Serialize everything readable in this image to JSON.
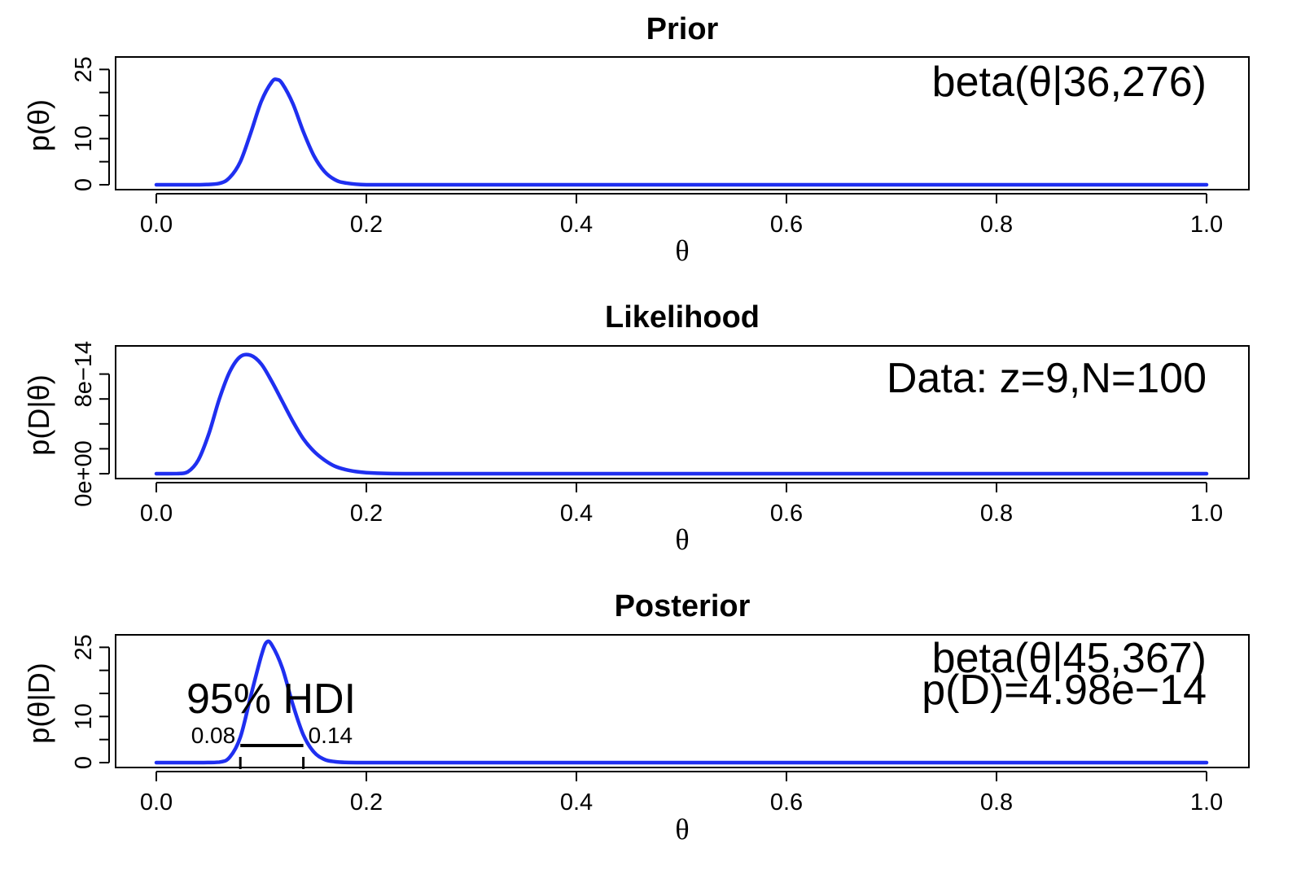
{
  "chart_data": [
    {
      "type": "line",
      "title": "Prior",
      "xlabel": "θ",
      "ylabel": "p(θ)",
      "xlim": [
        0,
        1
      ],
      "ylim": [
        0,
        27
      ],
      "x_ticks": [
        "0.0",
        "0.2",
        "0.4",
        "0.6",
        "0.8",
        "1.0"
      ],
      "x_tick_values": [
        0,
        0.2,
        0.4,
        0.6,
        0.8,
        1.0
      ],
      "y_ticks": [
        "0",
        "10",
        "25"
      ],
      "y_tick_values": [
        0,
        10,
        25
      ],
      "y_minor_ticks": [
        5,
        15,
        20
      ],
      "annotation": "beta(θ|36,276)",
      "series": [
        {
          "color": "#1f2ff0",
          "x": [
            0.0,
            0.02,
            0.04,
            0.06,
            0.07,
            0.08,
            0.09,
            0.1,
            0.11,
            0.115,
            0.12,
            0.13,
            0.14,
            0.15,
            0.16,
            0.17,
            0.18,
            0.2,
            0.25,
            0.5,
            0.75,
            1.0
          ],
          "y": [
            0,
            0,
            0,
            0.3,
            1.6,
            5.0,
            11.3,
            18.1,
            22.3,
            22.8,
            21.9,
            17.6,
            11.5,
            6.3,
            2.9,
            1.1,
            0.4,
            0.0,
            0,
            0,
            0,
            0
          ]
        }
      ]
    },
    {
      "type": "line",
      "title": "Likelihood",
      "xlabel": "θ",
      "ylabel": "p(D|θ)",
      "xlim": [
        0,
        1
      ],
      "ylim": [
        0,
        1e-13
      ],
      "x_ticks": [
        "0.0",
        "0.2",
        "0.4",
        "0.6",
        "0.8",
        "1.0"
      ],
      "x_tick_values": [
        0,
        0.2,
        0.4,
        0.6,
        0.8,
        1.0
      ],
      "y_ticks": [
        "0e+00",
        "8e−14"
      ],
      "y_tick_values": [
        0,
        8e-14
      ],
      "y_minor_ticks": [
        2e-14,
        4e-14,
        6e-14
      ],
      "annotation": "Data: z=9,N=100",
      "series": [
        {
          "color": "#1f2ff0",
          "x": [
            0.0,
            0.02,
            0.03,
            0.04,
            0.05,
            0.06,
            0.07,
            0.08,
            0.09,
            0.1,
            0.11,
            0.12,
            0.13,
            0.14,
            0.15,
            0.16,
            0.17,
            0.18,
            0.19,
            0.2,
            0.22,
            0.25,
            0.3,
            0.5,
            0.75,
            1.0
          ],
          "y": [
            0,
            5e-17,
            1.5e-15,
            1.1e-14,
            3.2e-14,
            6e-14,
            8.2e-14,
            9.4e-14,
            9.5e-14,
            8.8e-14,
            7.4e-14,
            5.8e-14,
            4.2e-14,
            2.8e-14,
            1.8e-14,
            1.1e-14,
            6e-15,
            3.3e-15,
            1.7e-15,
            8.5e-16,
            1.8e-16,
            1e-17,
            0,
            0,
            0,
            0
          ]
        }
      ]
    },
    {
      "type": "line",
      "title": "Posterior",
      "xlabel": "θ",
      "ylabel": "p(θ|D)",
      "xlim": [
        0,
        1
      ],
      "ylim": [
        0,
        27
      ],
      "x_ticks": [
        "0.0",
        "0.2",
        "0.4",
        "0.6",
        "0.8",
        "1.0"
      ],
      "x_tick_values": [
        0,
        0.2,
        0.4,
        0.6,
        0.8,
        1.0
      ],
      "y_ticks": [
        "0",
        "10",
        "25"
      ],
      "y_tick_values": [
        0,
        10,
        25
      ],
      "y_minor_ticks": [
        5,
        15,
        20
      ],
      "annotation_lines": [
        "beta(θ|45,367)",
        "p(D)=4.98e−14"
      ],
      "hdi": {
        "label": "95% HDI",
        "low": 0.08,
        "high": 0.14,
        "low_label": "0.08",
        "high_label": "0.14"
      },
      "series": [
        {
          "color": "#1f2ff0",
          "x": [
            0.0,
            0.04,
            0.06,
            0.07,
            0.08,
            0.09,
            0.1,
            0.105,
            0.11,
            0.12,
            0.13,
            0.14,
            0.15,
            0.16,
            0.17,
            0.18,
            0.2,
            0.25,
            0.5,
            0.75,
            1.0
          ],
          "y": [
            0,
            0,
            0.1,
            1.2,
            5.5,
            14.5,
            23.2,
            26.1,
            25.5,
            20.5,
            12.6,
            6.0,
            2.3,
            0.7,
            0.2,
            0.05,
            0,
            0,
            0,
            0,
            0
          ]
        }
      ]
    }
  ]
}
